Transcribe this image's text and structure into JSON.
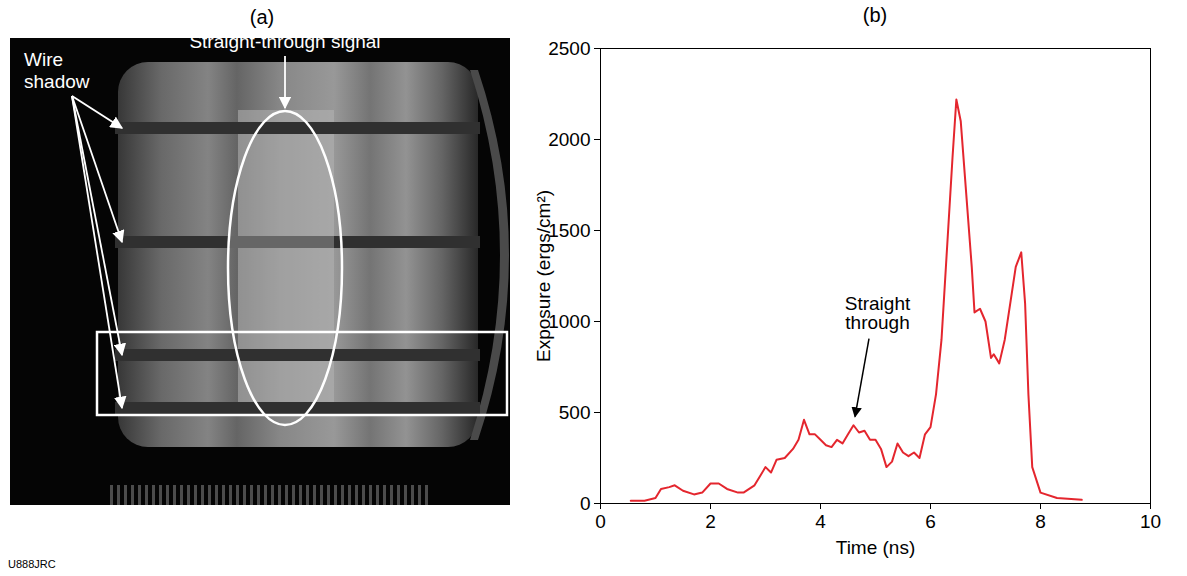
{
  "chart_data": {
    "type": "line",
    "title": "(b)",
    "xlabel": "Time (ns)",
    "ylabel": "Exposure (ergs/cm²)",
    "x": [
      0.55,
      0.8,
      1.0,
      1.1,
      1.25,
      1.35,
      1.5,
      1.7,
      1.85,
      2.0,
      2.15,
      2.3,
      2.5,
      2.6,
      2.8,
      2.9,
      3.0,
      3.1,
      3.2,
      3.35,
      3.5,
      3.6,
      3.7,
      3.8,
      3.9,
      4.0,
      4.1,
      4.2,
      4.3,
      4.4,
      4.5,
      4.6,
      4.7,
      4.8,
      4.9,
      5.0,
      5.1,
      5.2,
      5.3,
      5.4,
      5.5,
      5.6,
      5.7,
      5.8,
      5.9,
      6.0,
      6.1,
      6.2,
      6.3,
      6.4,
      6.47,
      6.55,
      6.65,
      6.75,
      6.8,
      6.9,
      7.0,
      7.1,
      7.15,
      7.25,
      7.35,
      7.45,
      7.55,
      7.65,
      7.72,
      7.78,
      7.85,
      8.0,
      8.3,
      8.75
    ],
    "values": [
      15,
      15,
      30,
      80,
      90,
      100,
      70,
      50,
      60,
      110,
      110,
      80,
      60,
      60,
      100,
      150,
      200,
      170,
      240,
      250,
      300,
      350,
      460,
      380,
      380,
      350,
      320,
      310,
      350,
      330,
      380,
      430,
      390,
      400,
      350,
      350,
      300,
      200,
      230,
      330,
      280,
      260,
      280,
      250,
      380,
      420,
      600,
      900,
      1400,
      1900,
      2220,
      2100,
      1700,
      1300,
      1050,
      1070,
      1000,
      800,
      820,
      770,
      900,
      1100,
      1300,
      1380,
      1100,
      600,
      200,
      60,
      30,
      20
    ],
    "color": "#e4262e",
    "xlim": [
      0,
      10
    ],
    "xticks": [
      0,
      2,
      4,
      6,
      8,
      10
    ],
    "ylim": [
      0,
      2500
    ],
    "yticks": [
      0,
      500,
      1000,
      1500,
      2000,
      2500
    ],
    "grid": false,
    "annotations": [
      {
        "text": "Straight through",
        "x": 4.6,
        "y": 430
      }
    ]
  },
  "image_panel": {
    "title": "(a)",
    "wire_label": "Wire shadow",
    "signal_label": "Straight-through signal"
  },
  "figure_id": "U888JRC"
}
